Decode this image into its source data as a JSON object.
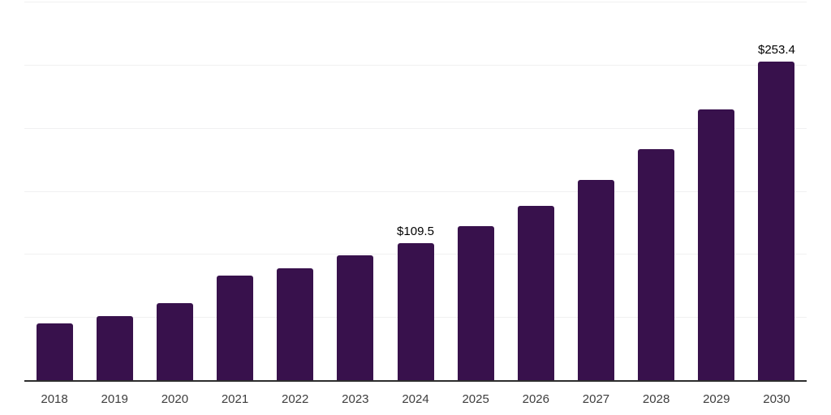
{
  "chart_data": {
    "type": "bar",
    "title": "",
    "xlabel": "",
    "ylabel": "",
    "categories": [
      "2018",
      "2019",
      "2020",
      "2021",
      "2022",
      "2023",
      "2024",
      "2025",
      "2026",
      "2027",
      "2028",
      "2029",
      "2030"
    ],
    "values": [
      45.4,
      51.2,
      61.8,
      83.3,
      89.0,
      99.5,
      109.5,
      123.0,
      138.9,
      159.4,
      183.7,
      215.0,
      253.4
    ],
    "data_labels": [
      null,
      null,
      null,
      null,
      null,
      null,
      "$109.5",
      null,
      null,
      null,
      null,
      null,
      "$253.4"
    ],
    "ylim": [
      0,
      300
    ],
    "gridline_step": 50,
    "grid": true,
    "legend": "none",
    "y_tick_labels_visible": false,
    "colors": {
      "bar": "#38114C",
      "gridline": "#F0F0F1",
      "axis_line": "#2D2D2D",
      "tick_label": "#3D3D3D",
      "data_label": "#000000"
    }
  }
}
